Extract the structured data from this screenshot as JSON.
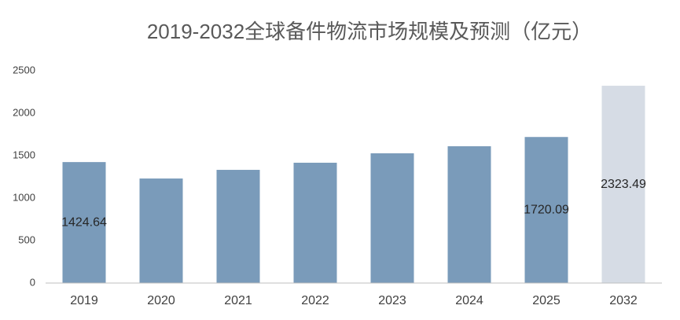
{
  "chart_data": {
    "type": "bar",
    "title": "2019-2032全球备件物流市场规模及预测（亿元）",
    "categories": [
      "2019",
      "2020",
      "2021",
      "2022",
      "2023",
      "2024",
      "2025",
      "2032"
    ],
    "values": [
      1424.64,
      1231,
      1333,
      1417,
      1528,
      1611,
      1720.09,
      2323.49
    ],
    "value_labels": [
      "1424.64",
      null,
      null,
      null,
      null,
      null,
      "1720.09",
      "2323.49"
    ],
    "colors": [
      "#7a9bba",
      "#7a9bba",
      "#7a9bba",
      "#7a9bba",
      "#7a9bba",
      "#7a9bba",
      "#7a9bba",
      "#d6dce5"
    ],
    "ylim": [
      0,
      2500
    ],
    "yticks": [
      0,
      500,
      1000,
      1500,
      2000,
      2500
    ],
    "grid": false
  }
}
